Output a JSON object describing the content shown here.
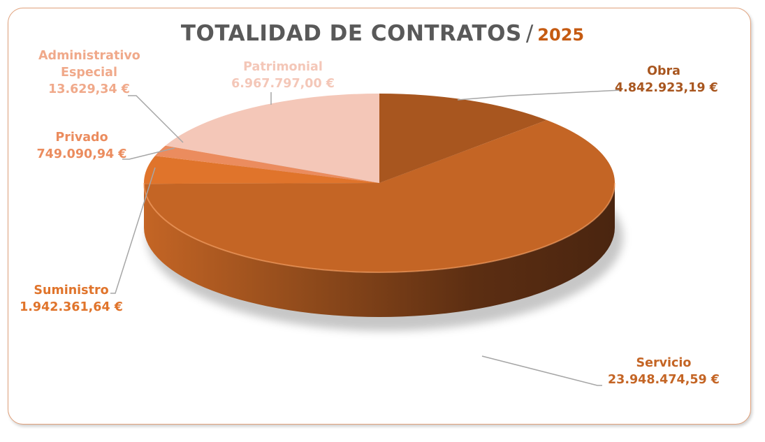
{
  "chart_data": {
    "type": "pie",
    "style": "3d",
    "title": "TOTALIDAD DE CONTRATOS",
    "title_separator": "/",
    "subtitle": "2025",
    "currency": "€",
    "categories": [
      "Obra",
      "Servicio",
      "Suministro",
      "Privado",
      "Administrativo Especial",
      "Patrimonial"
    ],
    "values": [
      4842923.19,
      23948474.59,
      1942361.64,
      749090.94,
      13629.34,
      6967797.0
    ],
    "value_labels": [
      "4.842.923,19 €",
      "23.948.474,59 €",
      "1.942.361,64 €",
      "749.090,94 €",
      "13.629,34 €",
      "6.967.797,00 €"
    ],
    "colors": [
      "#a8561f",
      "#c46525",
      "#e0742b",
      "#eb8c5e",
      "#f0a98a",
      "#f4c7b8"
    ],
    "label_colors": [
      "#a8561f",
      "#c46525",
      "#e0742b",
      "#eb8c5e",
      "#f0a98a",
      "#f4c7b8"
    ],
    "start_angle_deg": 90,
    "direction": "clockwise",
    "legend": "none",
    "data_labels": "outside with leader lines"
  },
  "labels": {
    "obra": {
      "name": "Obra",
      "value": "4.842.923,19 €"
    },
    "servicio": {
      "name": "Servicio",
      "value": "23.948.474,59 €"
    },
    "suministro": {
      "name": "Suministro",
      "value": "1.942.361,64 €"
    },
    "privado": {
      "name": "Privado",
      "value": "749.090,94 €"
    },
    "admin": {
      "name1": "Administrativo",
      "name2": "Especial",
      "value": "13.629,34 €"
    },
    "patrimonial": {
      "name": "Patrimonial",
      "value": "6.967.797,00 €"
    }
  },
  "title": {
    "main": "TOTALIDAD DE CONTRATOS",
    "sep": "/",
    "year": "2025"
  },
  "colors": {
    "border": "#e0a07a",
    "title": "#595959",
    "accent": "#c55a11",
    "leader": "#a6a6a6"
  }
}
